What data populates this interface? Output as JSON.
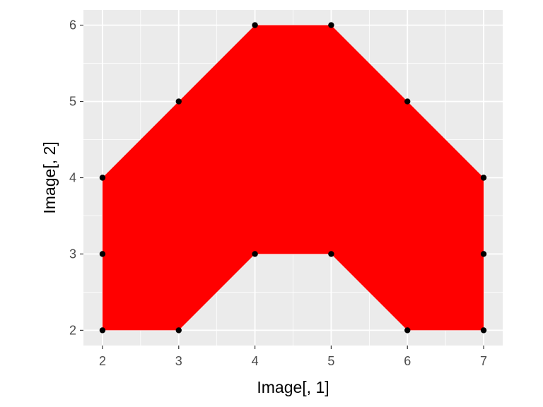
{
  "chart_data": {
    "type": "scatter",
    "title": "",
    "xlabel": "Image[, 1]",
    "ylabel": "Image[, 2]",
    "xlim": [
      1.75,
      7.25
    ],
    "ylim": [
      1.8,
      6.2
    ],
    "x_ticks": [
      2,
      3,
      4,
      5,
      6,
      7
    ],
    "y_ticks": [
      2,
      3,
      4,
      5,
      6
    ],
    "grid": true,
    "polygon_fill": "#ff0000",
    "point_color": "#000000",
    "panel_background": "#ebebeb",
    "gridline_color": "#ffffff",
    "polygon": [
      [
        2,
        4
      ],
      [
        3,
        5
      ],
      [
        4,
        6
      ],
      [
        5,
        6
      ],
      [
        6,
        5
      ],
      [
        7,
        4
      ],
      [
        7,
        3
      ],
      [
        7,
        2
      ],
      [
        6,
        2
      ],
      [
        5,
        3
      ],
      [
        4,
        3
      ],
      [
        3,
        2
      ],
      [
        2,
        2
      ],
      [
        2,
        3
      ]
    ],
    "points": [
      [
        2,
        2
      ],
      [
        2,
        3
      ],
      [
        2,
        4
      ],
      [
        3,
        2
      ],
      [
        3,
        5
      ],
      [
        4,
        3
      ],
      [
        4,
        6
      ],
      [
        5,
        3
      ],
      [
        5,
        6
      ],
      [
        6,
        2
      ],
      [
        6,
        5
      ],
      [
        7,
        2
      ],
      [
        7,
        3
      ],
      [
        7,
        4
      ]
    ]
  }
}
